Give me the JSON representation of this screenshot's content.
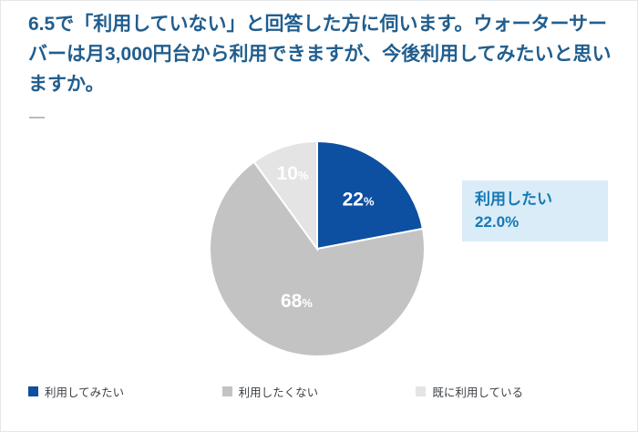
{
  "title": "6.5で「利用していない」と回答した方に伺います。ウォーターサーバーは月3,000円台から利用できますが、今後利用してみたいと思いますか。",
  "chart_data": {
    "type": "pie",
    "categories": [
      "利用してみたい",
      "利用したくない",
      "既に利用している"
    ],
    "values": [
      22,
      68,
      10
    ],
    "unit": "%",
    "colors": [
      "#0d4fa1",
      "#c3c3c3",
      "#e4e4e4"
    ],
    "label_colors": [
      "#ffffff",
      "#ffffff",
      "#ffffff"
    ],
    "label_radius": [
      0.6,
      0.52,
      0.74
    ],
    "start_angle": 0,
    "direction": "clockwise",
    "legend_position": "bottom",
    "annotation": {
      "label": "利用したい",
      "value": "22.0%"
    }
  },
  "callout": {
    "label": "利用したい",
    "value": "22.0%",
    "bg_color": "#d9ecf8",
    "text_color": "#1779b2"
  },
  "colors": {
    "title_text": "#215e8e",
    "slice_blue": "#0d4fa1",
    "slice_gray": "#c3c3c3",
    "slice_light_gray": "#e4e4e4"
  }
}
